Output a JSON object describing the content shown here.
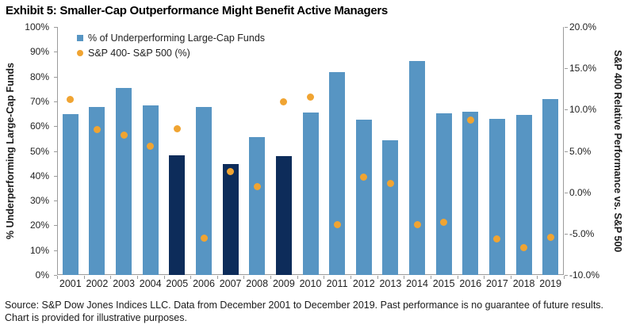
{
  "title": "Exhibit 5: Smaller-Cap Outperformance Might Benefit Active Managers",
  "source_note": "Source: S&P Dow Jones Indices LLC. Data from December 2001 to December 2019. Past performance is no guarantee of future results. Chart is provided for illustrative purposes.",
  "colors": {
    "bar_light": "#5795C3",
    "bar_dark": "#0D2C5A",
    "dot_orange": "#F0A432",
    "axis_line": "#9B9B9B"
  },
  "chart_data": {
    "type": "combo",
    "title": "Exhibit 5: Smaller-Cap Outperformance Might Benefit Active Managers",
    "categories": [
      "2001",
      "2002",
      "2003",
      "2004",
      "2005",
      "2006",
      "2007",
      "2008",
      "2009",
      "2010",
      "2011",
      "2012",
      "2013",
      "2014",
      "2015",
      "2016",
      "2017",
      "2018",
      "2019"
    ],
    "series": [
      {
        "name": "% of Underperforming Large-Cap Funds",
        "type": "bar",
        "axis": "left",
        "values": [
          64.9,
          67.6,
          75.3,
          68.5,
          48.4,
          67.8,
          44.6,
          55.6,
          48.0,
          65.5,
          81.9,
          62.5,
          54.3,
          86.3,
          65.3,
          65.9,
          63.0,
          64.4,
          70.9
        ],
        "color": "#5795C3",
        "highlight_color": "#0D2C5A",
        "highlight_categories": [
          "2005",
          "2007",
          "2009"
        ]
      },
      {
        "name": "S&P 400- S&P 500 (%)",
        "type": "scatter",
        "axis": "right",
        "values": [
          11.2,
          7.6,
          6.9,
          5.6,
          7.7,
          -5.5,
          2.5,
          0.7,
          10.9,
          11.5,
          -3.9,
          1.8,
          1.1,
          -3.9,
          -3.6,
          8.7,
          -5.6,
          -6.7,
          -5.4
        ],
        "color": "#F0A432"
      }
    ],
    "left_axis": {
      "label": "% Underperforming Large-Cap Funds",
      "min": 0,
      "max": 100,
      "tick_labels": [
        "100%",
        "90%",
        "80%",
        "70%",
        "60%",
        "50%",
        "40%",
        "30%",
        "20%",
        "10%",
        "0%"
      ]
    },
    "right_axis": {
      "label": "S&P 400 Relative Performance vs. S&P 500",
      "min": -10,
      "max": 20,
      "tick_labels": [
        "20.0%",
        "15.0%",
        "10.0%",
        "5.0%",
        "0.0%",
        "-5.0%",
        "-10.0%"
      ]
    },
    "grid": false,
    "legend_position": "top-left-inside"
  }
}
